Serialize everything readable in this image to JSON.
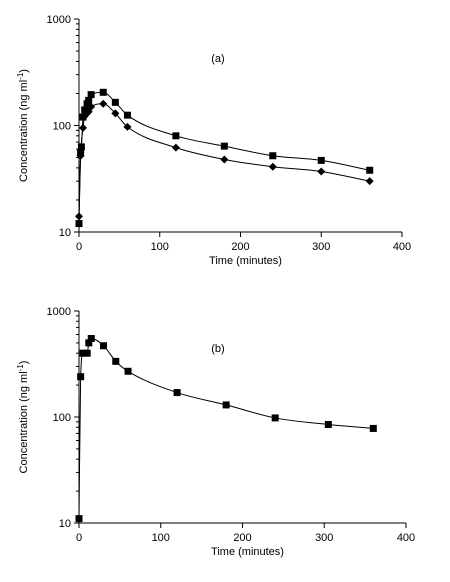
{
  "chart_data": [
    {
      "type": "scatter",
      "panel_label": "(a)",
      "xlabel": "Time (minutes)",
      "ylabel": "Concentration (ng ml",
      "ylabel_superscript": "-1",
      "ylabel_close": ")",
      "xlim": [
        0,
        400
      ],
      "ylim": [
        10,
        1000
      ],
      "yscale": "log",
      "grid": false,
      "x_ticks": [
        "0",
        "100",
        "200",
        "300",
        "400"
      ],
      "y_ticks": [
        "10",
        "100",
        "1000"
      ],
      "series": [
        {
          "marker": "square",
          "points": [
            [
              0,
              12
            ],
            [
              2,
              55
            ],
            [
              3,
              63
            ],
            [
              5,
              120
            ],
            [
              7,
              140
            ],
            [
              10,
              160
            ],
            [
              12,
              172
            ],
            [
              15,
              195
            ],
            [
              30,
              205
            ],
            [
              45,
              165
            ],
            [
              60,
              125
            ],
            [
              120,
              80
            ],
            [
              180,
              64
            ],
            [
              240,
              52
            ],
            [
              300,
              47
            ],
            [
              360,
              38
            ]
          ]
        },
        {
          "marker": "diamond",
          "points": [
            [
              0,
              14
            ],
            [
              2,
              52
            ],
            [
              5,
              95
            ],
            [
              7,
              122
            ],
            [
              10,
              130
            ],
            [
              12,
              135
            ],
            [
              15,
              150
            ],
            [
              30,
              160
            ],
            [
              45,
              130
            ],
            [
              60,
              97
            ],
            [
              120,
              62
            ],
            [
              180,
              48
            ],
            [
              240,
              41
            ],
            [
              300,
              37
            ],
            [
              360,
              30
            ]
          ]
        }
      ]
    },
    {
      "type": "scatter",
      "panel_label": "(b)",
      "xlabel": "Time (minutes)",
      "ylabel": "Concentration (ng ml",
      "ylabel_superscript": "-1",
      "ylabel_close": ")",
      "xlim": [
        0,
        400
      ],
      "ylim": [
        10,
        1000
      ],
      "yscale": "log",
      "grid": false,
      "x_ticks": [
        "0",
        "100",
        "200",
        "300",
        "400"
      ],
      "y_ticks": [
        "10",
        "100",
        "1000"
      ],
      "series": [
        {
          "marker": "square",
          "points": [
            [
              0,
              11
            ],
            [
              2,
              240
            ],
            [
              5,
              400
            ],
            [
              10,
              400
            ],
            [
              12,
              500
            ],
            [
              15,
              550
            ],
            [
              30,
              470
            ],
            [
              45,
              335
            ],
            [
              60,
              270
            ],
            [
              120,
              170
            ],
            [
              180,
              130
            ],
            [
              240,
              98
            ],
            [
              305,
              85
            ],
            [
              360,
              78
            ]
          ]
        }
      ]
    }
  ]
}
